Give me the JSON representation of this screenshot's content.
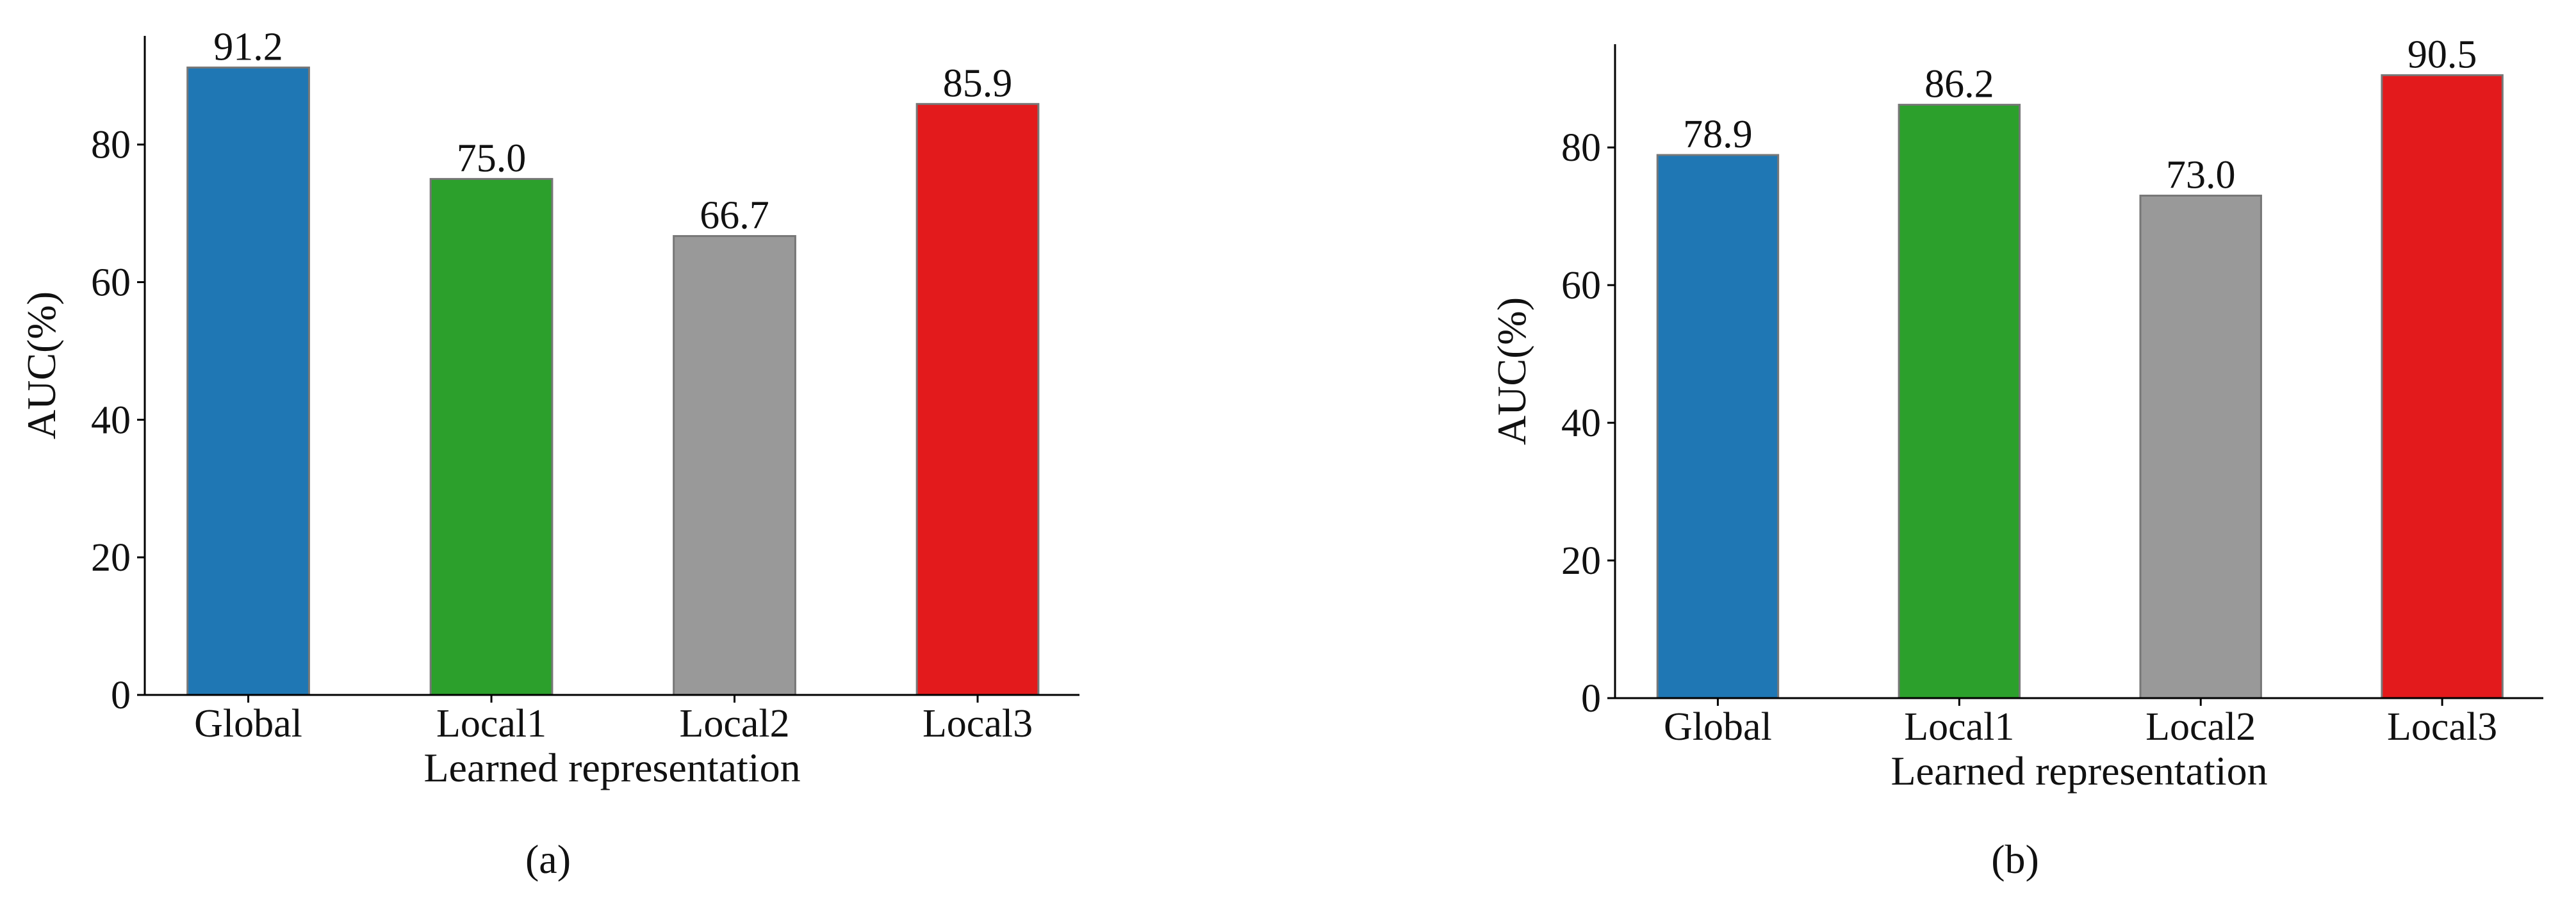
{
  "chart_data": [
    {
      "type": "bar",
      "ylabel": "AUC(%)",
      "xlabel": "Learned representation",
      "caption": "(a)",
      "categories": [
        "Global",
        "Local1",
        "Local2",
        "Local3"
      ],
      "values": [
        91.2,
        75.0,
        66.7,
        85.9
      ],
      "value_labels": [
        "91.2",
        "75.0",
        "66.7",
        "85.9"
      ],
      "colors": [
        "#1f77b4",
        "#2ca02c",
        "#999999",
        "#e31a1c"
      ],
      "ylim": [
        0,
        95.8
      ],
      "yticks": [
        0,
        20,
        40,
        60,
        80
      ]
    },
    {
      "type": "bar",
      "ylabel": "AUC(%)",
      "xlabel": "Learned representation",
      "caption": "(b)",
      "categories": [
        "Global",
        "Local1",
        "Local2",
        "Local3"
      ],
      "values": [
        78.9,
        86.2,
        73.0,
        90.5
      ],
      "value_labels": [
        "78.9",
        "86.2",
        "73.0",
        "90.5"
      ],
      "colors": [
        "#1f77b4",
        "#2ca02c",
        "#999999",
        "#e31a1c"
      ],
      "ylim": [
        0,
        95
      ],
      "yticks": [
        0,
        20,
        40,
        60,
        80
      ]
    }
  ]
}
